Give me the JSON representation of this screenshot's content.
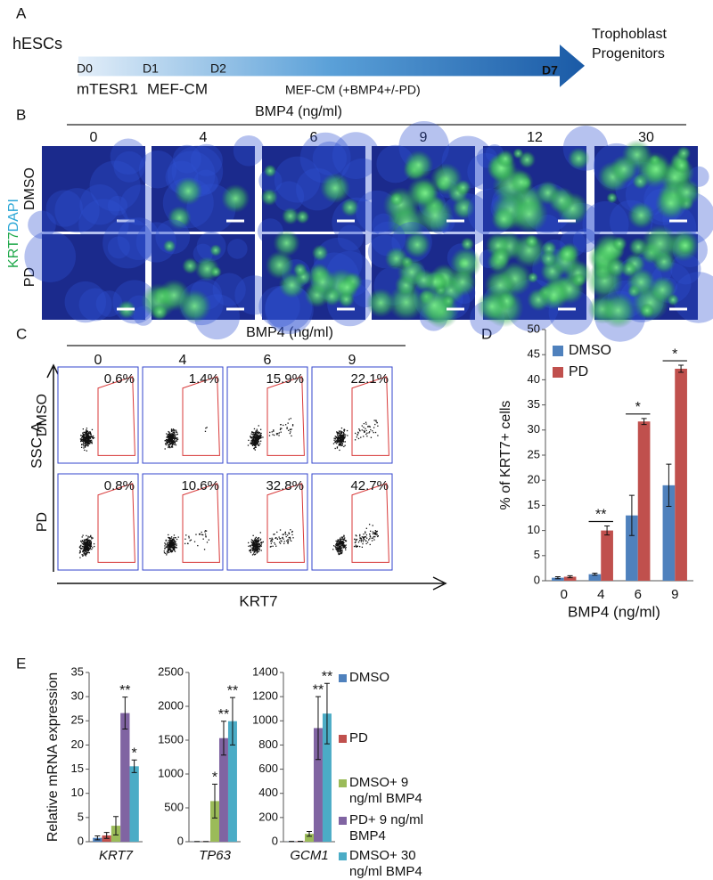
{
  "panel_a": {
    "letter": "A",
    "start": "hESCs",
    "end": "Trophoblast Progenitors",
    "days": [
      "D0",
      "D1",
      "D2",
      "D7"
    ],
    "media": [
      "mTESR1",
      "MEF-CM",
      "MEF-CM (+BMP4+/-PD)"
    ]
  },
  "panel_b": {
    "letter": "B",
    "header": "BMP4 (ng/ml)",
    "columns": [
      0,
      4,
      6,
      9,
      12,
      30
    ],
    "rows": [
      "DMSO",
      "PD"
    ],
    "stain": [
      "KRT7",
      "DAPI"
    ]
  },
  "panel_c": {
    "letter": "C",
    "header": "BMP4 (ng/ml)",
    "columns": [
      0,
      4,
      6,
      9
    ],
    "rows": [
      "DMSO",
      "PD"
    ],
    "percentages": [
      [
        "0.6%",
        "1.4%",
        "15.9%",
        "22.1%"
      ],
      [
        "0.8%",
        "10.6%",
        "32.8%",
        "42.7%"
      ]
    ],
    "ylabel": "SSC-A",
    "xlabel": "KRT7"
  },
  "panel_d_letter": "D",
  "panel_e_letter": "E",
  "chart_data": [
    {
      "type": "bar",
      "ylabel": "% of KRT7+ cells",
      "xlabel": "BMP4 (ng/ml)",
      "categories": [
        0,
        4,
        6,
        9
      ],
      "ylim": [
        0,
        50
      ],
      "yticks": [
        0,
        5,
        10,
        15,
        20,
        25,
        30,
        35,
        40,
        45,
        50
      ],
      "legend": "upper left",
      "series": [
        {
          "name": "DMSO",
          "color": "#4f81bd",
          "values": [
            0.6,
            1.3,
            13,
            19
          ],
          "errors": [
            0.2,
            0.2,
            4,
            4.2
          ]
        },
        {
          "name": "PD",
          "color": "#c0504d",
          "values": [
            0.8,
            10,
            31.7,
            42.2
          ],
          "errors": [
            0.2,
            0.9,
            0.6,
            0.7
          ]
        }
      ],
      "significance": [
        null,
        "**",
        "*",
        "*"
      ]
    },
    {
      "type": "bar",
      "ylabel": "Relative mRNA expression",
      "categories": [
        "KRT7"
      ],
      "italic": true,
      "ylim": [
        0,
        35
      ],
      "yticks": [
        0,
        5,
        10,
        15,
        20,
        25,
        30,
        35
      ],
      "legend": "right",
      "series": [
        {
          "name": "DMSO",
          "color": "#4f81bd",
          "values": [
            0.8
          ],
          "errors": [
            0.4
          ],
          "annotations": [
            null
          ]
        },
        {
          "name": "PD",
          "color": "#c0504d",
          "values": [
            1.3
          ],
          "errors": [
            0.6
          ],
          "annotations": [
            null
          ]
        },
        {
          "name": "DMSO+ 9 ng/ml BMP4",
          "color": "#9bbb59",
          "values": [
            3.3
          ],
          "errors": [
            1.9
          ],
          "annotations": [
            null
          ]
        },
        {
          "name": "PD+ 9 ng/ml BMP4",
          "color": "#8064a2",
          "values": [
            26.6
          ],
          "errors": [
            3.3
          ],
          "annotations": [
            "**"
          ]
        },
        {
          "name": "DMSO+ 30 ng/ml BMP4",
          "color": "#4bacc6",
          "values": [
            15.6
          ],
          "errors": [
            1.3
          ],
          "annotations": [
            "*"
          ]
        }
      ]
    },
    {
      "type": "bar",
      "categories": [
        "TP63"
      ],
      "italic": true,
      "ylim": [
        0,
        2500
      ],
      "yticks": [
        0,
        500,
        1000,
        1500,
        2000,
        2500
      ],
      "series": [
        {
          "color": "#4f81bd",
          "values": [
            2
          ],
          "errors": [
            1
          ],
          "annotations": [
            null
          ]
        },
        {
          "color": "#c0504d",
          "values": [
            2
          ],
          "errors": [
            1
          ],
          "annotations": [
            null
          ]
        },
        {
          "color": "#9bbb59",
          "values": [
            600
          ],
          "errors": [
            250
          ],
          "annotations": [
            "*"
          ]
        },
        {
          "color": "#8064a2",
          "values": [
            1530
          ],
          "errors": [
            250
          ],
          "annotations": [
            "**"
          ]
        },
        {
          "color": "#4bacc6",
          "values": [
            1780
          ],
          "errors": [
            350
          ],
          "annotations": [
            "**"
          ]
        }
      ]
    },
    {
      "type": "bar",
      "categories": [
        "GCM1"
      ],
      "italic": true,
      "ylim": [
        0,
        1400
      ],
      "yticks": [
        0,
        200,
        400,
        600,
        800,
        1000,
        1200,
        1400
      ],
      "series": [
        {
          "color": "#4f81bd",
          "values": [
            2
          ],
          "errors": [
            1
          ],
          "annotations": [
            null
          ]
        },
        {
          "color": "#c0504d",
          "values": [
            3
          ],
          "errors": [
            1
          ],
          "annotations": [
            null
          ]
        },
        {
          "color": "#9bbb59",
          "values": [
            65
          ],
          "errors": [
            20
          ],
          "annotations": [
            null
          ]
        },
        {
          "color": "#8064a2",
          "values": [
            940
          ],
          "errors": [
            260
          ],
          "annotations": [
            "**"
          ]
        },
        {
          "color": "#4bacc6",
          "values": [
            1060
          ],
          "errors": [
            250
          ],
          "annotations": [
            "**"
          ]
        }
      ]
    }
  ]
}
